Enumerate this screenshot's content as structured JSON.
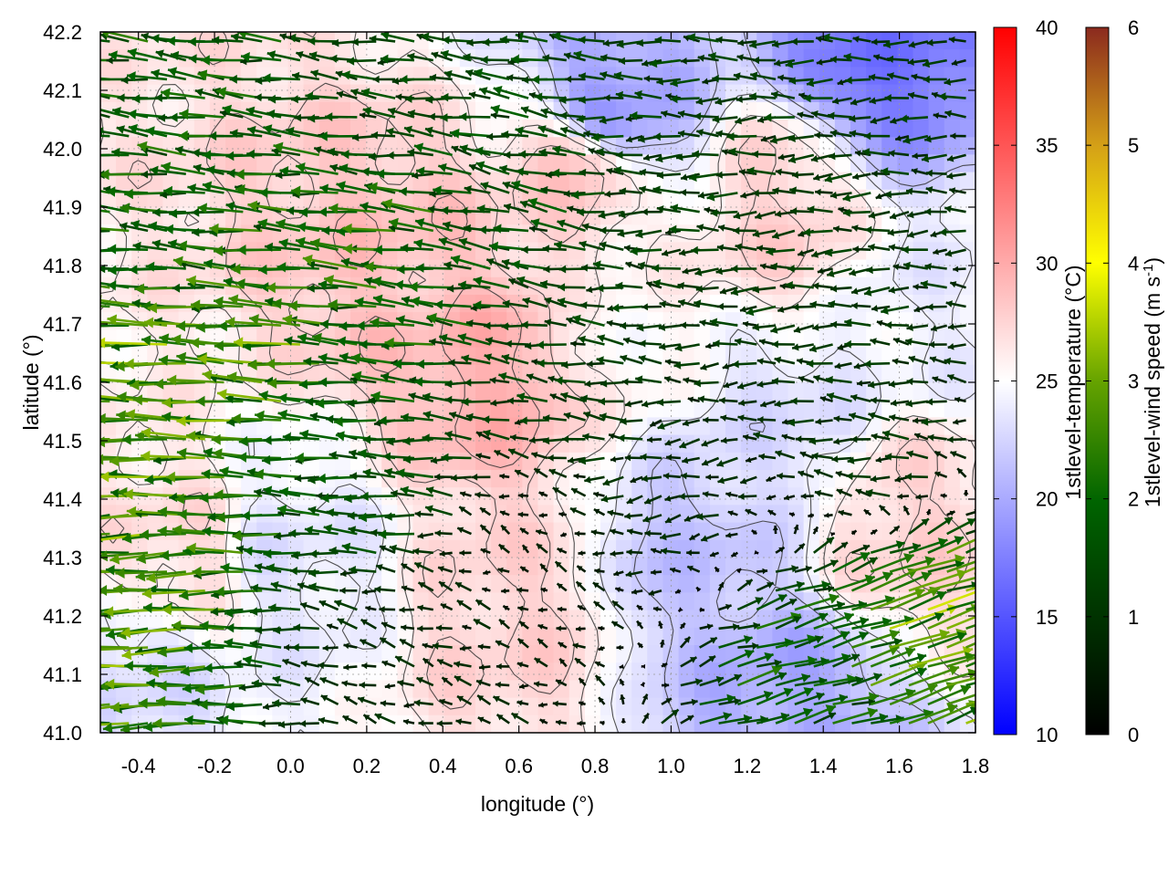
{
  "chart_data": {
    "type": "heatmap",
    "overlay": [
      "vector-field",
      "contour"
    ],
    "xlabel": "longitude (°)",
    "ylabel": "latitude (°)",
    "xlim": [
      -0.5,
      1.8
    ],
    "ylim": [
      41.0,
      42.2
    ],
    "x_ticks": [
      "-0.4",
      "-0.2",
      "0.0",
      "0.2",
      "0.4",
      "0.6",
      "0.8",
      "1.0",
      "1.2",
      "1.4",
      "1.6",
      "1.8"
    ],
    "y_ticks": [
      "41.0",
      "41.1",
      "41.2",
      "41.3",
      "41.4",
      "41.5",
      "41.6",
      "41.7",
      "41.8",
      "41.9",
      "42.0",
      "42.1",
      "42.2"
    ],
    "grid": true,
    "colorbars": [
      {
        "label": "1stlevel-temperature (°C)",
        "range": [
          10,
          40
        ],
        "ticks": [
          "10",
          "15",
          "20",
          "25",
          "30",
          "35",
          "40"
        ],
        "colors": [
          "#0000ff",
          "#ffffff",
          "#ff0000"
        ]
      },
      {
        "label_main": "1stlevel-wind speed (m s",
        "label_sup": "-1",
        "label_end": ")",
        "range": [
          0,
          6
        ],
        "ticks": [
          "0",
          "1",
          "2",
          "3",
          "4",
          "5",
          "6"
        ],
        "colors": [
          "#000000",
          "#006400",
          "#66a300",
          "#ffff00",
          "#d4a017",
          "#8b2a1e"
        ]
      }
    ],
    "temperature_regions": [
      {
        "lon": 0.55,
        "lat": 41.62,
        "value": 29.5
      },
      {
        "lon": 0.3,
        "lat": 41.8,
        "value": 28.5
      },
      {
        "lon": 0.75,
        "lat": 41.95,
        "value": 28.0
      },
      {
        "lon": 1.3,
        "lat": 41.9,
        "value": 27.5
      },
      {
        "lon": -0.3,
        "lat": 41.3,
        "value": 27.0
      },
      {
        "lon": 0.6,
        "lat": 41.2,
        "value": 27.5
      },
      {
        "lon": 1.6,
        "lat": 41.35,
        "value": 27.5
      },
      {
        "lon": 1.55,
        "lat": 42.15,
        "value": 17.0
      },
      {
        "lon": 0.85,
        "lat": 42.08,
        "value": 19.5
      },
      {
        "lon": 1.3,
        "lat": 41.05,
        "value": 20.0
      },
      {
        "lon": 1.05,
        "lat": 41.3,
        "value": 21.5
      },
      {
        "lon": 1.3,
        "lat": 41.5,
        "value": 23.0
      },
      {
        "lon": -0.4,
        "lat": 41.1,
        "value": 23.0
      },
      {
        "lon": 1.7,
        "lat": 41.75,
        "value": 24.0
      },
      {
        "lon": 0.0,
        "lat": 41.3,
        "value": 23.5
      },
      {
        "lon": 0.85,
        "lat": 41.7,
        "value": 25.5
      }
    ],
    "wind_regions": [
      {
        "lon": -0.35,
        "lat": 41.62,
        "u": -3.6,
        "v": 0.1
      },
      {
        "lon": -0.1,
        "lat": 41.62,
        "u": -3.4,
        "v": 0.2
      },
      {
        "lon": -0.45,
        "lat": 41.24,
        "u": -3.5,
        "v": -0.2
      },
      {
        "lon": 0.25,
        "lat": 41.82,
        "u": -2.8,
        "v": 0.3
      },
      {
        "lon": -0.3,
        "lat": 41.85,
        "u": -2.5,
        "v": 0.2
      },
      {
        "lon": 0.2,
        "lat": 41.45,
        "u": -2.2,
        "v": 0.1
      },
      {
        "lon": 0.6,
        "lat": 41.9,
        "u": -2.0,
        "v": 0.4
      },
      {
        "lon": 1.0,
        "lat": 41.95,
        "u": -1.6,
        "v": 0.0
      },
      {
        "lon": 1.4,
        "lat": 41.8,
        "u": -1.5,
        "v": -0.1
      },
      {
        "lon": 1.55,
        "lat": 41.5,
        "u": -1.4,
        "v": 0.1
      },
      {
        "lon": 1.65,
        "lat": 41.18,
        "u": 3.5,
        "v": 1.2
      },
      {
        "lon": 1.35,
        "lat": 41.08,
        "u": 2.4,
        "v": 0.7
      },
      {
        "lon": 0.65,
        "lat": 41.3,
        "u": -0.6,
        "v": 0.3
      },
      {
        "lon": 0.3,
        "lat": 42.1,
        "u": -1.8,
        "v": 0.2
      },
      {
        "lon": -0.3,
        "lat": 42.1,
        "u": -2.4,
        "v": 0.3
      },
      {
        "lon": 0.8,
        "lat": 41.6,
        "u": -1.6,
        "v": 0.2
      },
      {
        "lon": 1.0,
        "lat": 41.45,
        "u": -1.2,
        "v": -0.2
      },
      {
        "lon": 0.35,
        "lat": 41.15,
        "u": -1.0,
        "v": 0.3
      }
    ]
  }
}
